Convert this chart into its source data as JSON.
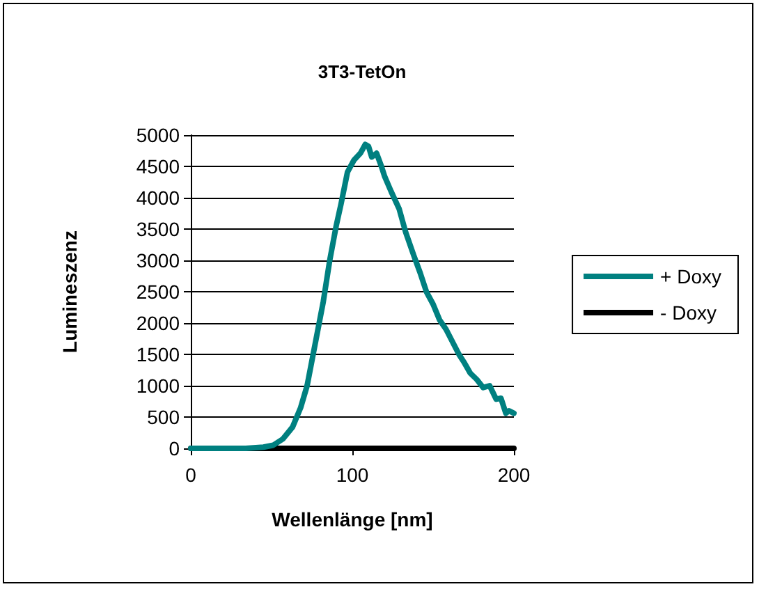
{
  "chart_data": {
    "type": "line",
    "title": "3T3-TetOn",
    "xlabel": "Wellenlänge [nm]",
    "ylabel": "Lumineszenz",
    "series": [
      {
        "name": "+ Doxy",
        "color": "#008080",
        "x": [
          0,
          20,
          34,
          45,
          51,
          57,
          63,
          68,
          72,
          77,
          82,
          86,
          90,
          93,
          97,
          101,
          105,
          108,
          110,
          112,
          115,
          118,
          120,
          124,
          129,
          133,
          138,
          142,
          146,
          150,
          154,
          158,
          162,
          166,
          169,
          173,
          177,
          181,
          185,
          189,
          192,
          195,
          197,
          200
        ],
        "values": [
          0,
          0,
          0,
          20,
          50,
          150,
          340,
          650,
          1000,
          1670,
          2340,
          3000,
          3550,
          3900,
          4410,
          4600,
          4710,
          4850,
          4820,
          4650,
          4710,
          4500,
          4340,
          4100,
          3820,
          3450,
          3080,
          2800,
          2490,
          2300,
          2050,
          1900,
          1700,
          1500,
          1380,
          1200,
          1100,
          970,
          1000,
          785,
          800,
          560,
          600,
          560
        ]
      },
      {
        "name": "- Doxy",
        "color": "#000000",
        "x": [
          0,
          50,
          100,
          150,
          200
        ],
        "values": [
          0,
          0,
          0,
          0,
          0
        ]
      }
    ],
    "xlim": [
      0,
      200
    ],
    "xticks": [
      0,
      100,
      200
    ],
    "ylim": [
      0,
      5000
    ],
    "yticks": [
      0,
      500,
      1000,
      1500,
      2000,
      2500,
      3000,
      3500,
      4000,
      4500,
      5000
    ],
    "grid": "y",
    "legend": "right",
    "marker": "none",
    "line_style": "solid"
  }
}
